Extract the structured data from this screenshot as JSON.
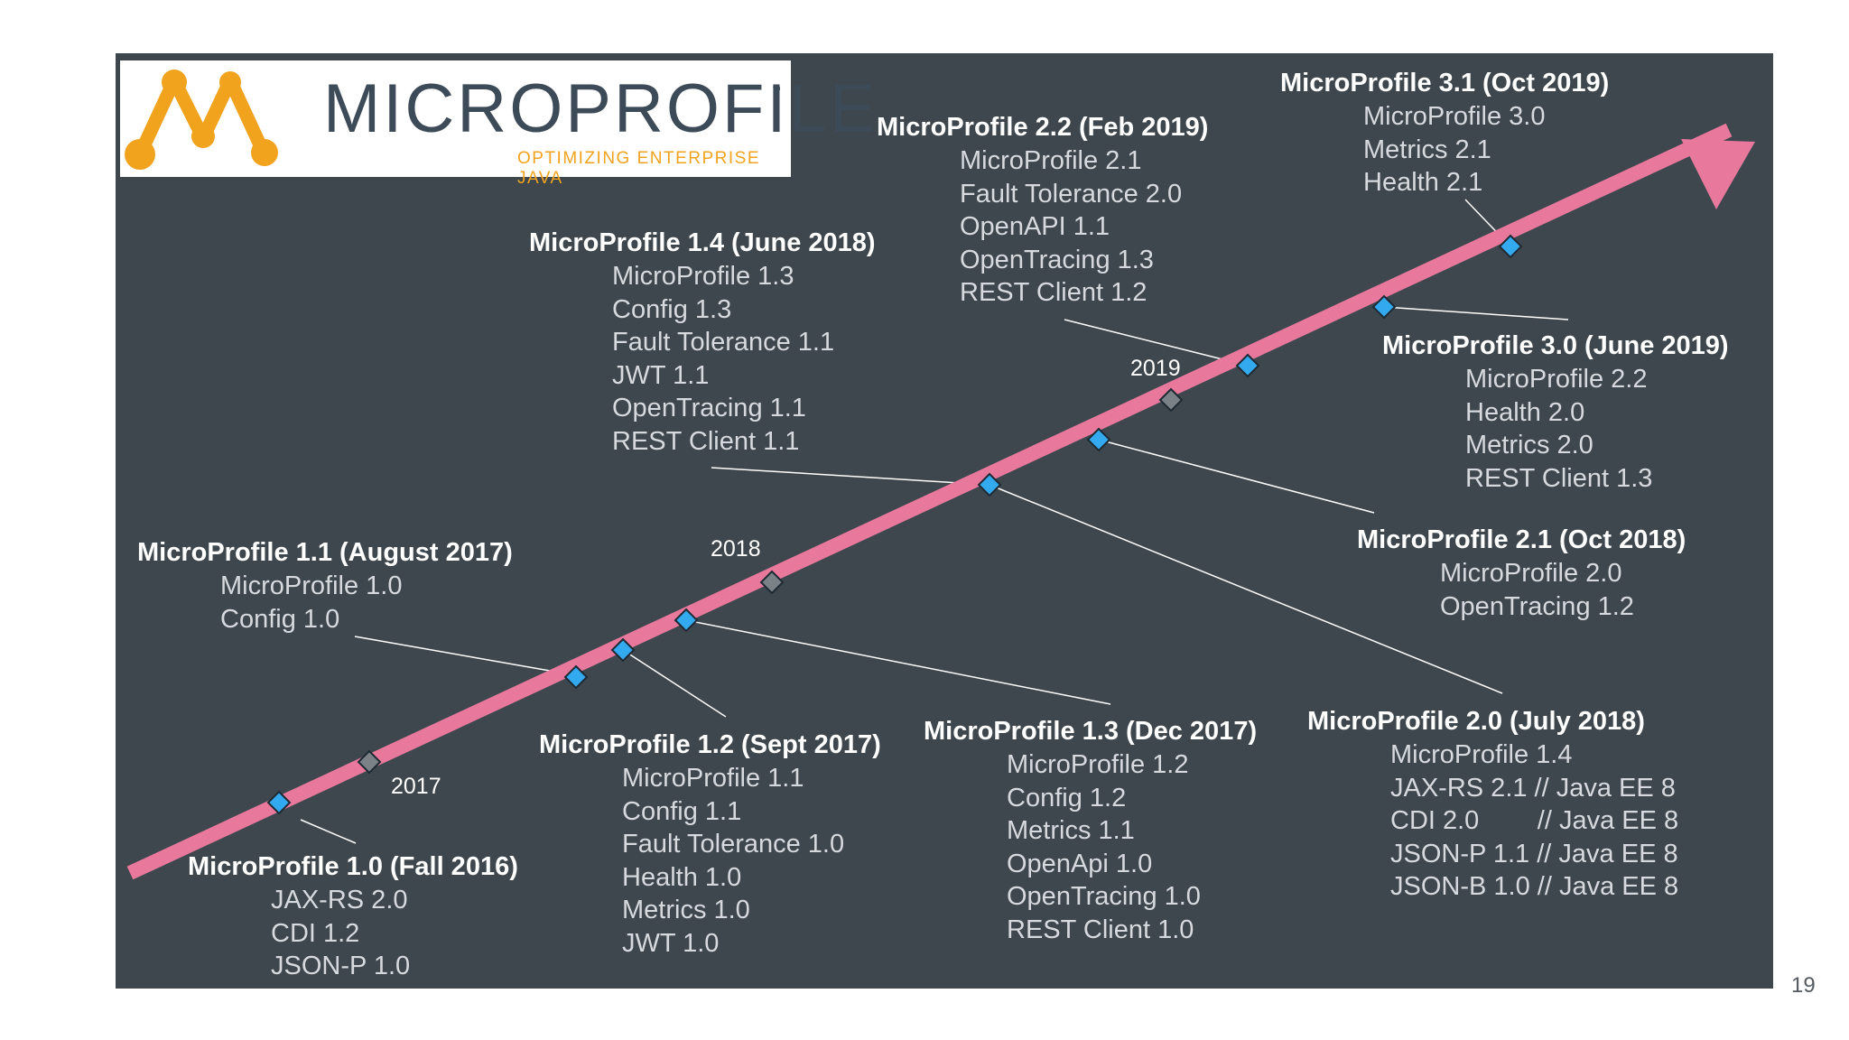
{
  "logo": {
    "wordmark": "MICROPROFILE",
    "trademark": "™",
    "tagline": "OPTIMIZING ENTERPRISE JAVA",
    "brand_color": "#f2a31d"
  },
  "colors": {
    "background": "#3e474d",
    "timeline": "#e8799c",
    "release_marker": "#33aaf0",
    "year_marker": "#7a8288"
  },
  "years": [
    "2017",
    "2018",
    "2019"
  ],
  "releases": [
    {
      "title": "MicroProfile 1.0 (Fall 2016)",
      "items": [
        "JAX-RS 2.0",
        "CDI 1.2",
        "JSON-P 1.0"
      ]
    },
    {
      "title": "MicroProfile 1.1 (August 2017)",
      "items": [
        "MicroProfile 1.0",
        "Config 1.0"
      ]
    },
    {
      "title": "MicroProfile 1.2 (Sept 2017)",
      "items": [
        "MicroProfile 1.1",
        "Config 1.1",
        "Fault Tolerance 1.0",
        "Health 1.0",
        "Metrics 1.0",
        "JWT 1.0"
      ]
    },
    {
      "title": "MicroProfile 1.3 (Dec 2017)",
      "items": [
        "MicroProfile 1.2",
        "Config 1.2",
        "Metrics 1.1",
        "OpenApi 1.0",
        "OpenTracing 1.0",
        "REST Client 1.0"
      ]
    },
    {
      "title": "MicroProfile 1.4 (June 2018)",
      "items": [
        "MicroProfile 1.3",
        "Config 1.3",
        "Fault Tolerance 1.1",
        "JWT 1.1",
        "OpenTracing 1.1",
        "REST Client 1.1"
      ]
    },
    {
      "title": "MicroProfile 2.0 (July 2018)",
      "items": [
        "MicroProfile 1.4",
        "JAX-RS 2.1 // Java EE 8",
        "CDI 2.0        // Java EE 8",
        "JSON-P 1.1 // Java EE 8",
        "JSON-B 1.0 // Java EE 8"
      ]
    },
    {
      "title": "MicroProfile 2.1 (Oct 2018)",
      "items": [
        "MicroProfile 2.0",
        "OpenTracing 1.2"
      ]
    },
    {
      "title": "MicroProfile 2.2 (Feb 2019)",
      "items": [
        "MicroProfile 2.1",
        "Fault Tolerance 2.0",
        "OpenAPI 1.1",
        "OpenTracing 1.3",
        "REST Client 1.2"
      ]
    },
    {
      "title": "MicroProfile 3.0 (June 2019)",
      "items": [
        "MicroProfile 2.2",
        "Health 2.0",
        "Metrics 2.0",
        "REST Client 1.3"
      ]
    },
    {
      "title": "MicroProfile 3.1 (Oct 2019)",
      "items": [
        "MicroProfile 3.0",
        "Metrics 2.1",
        "Health 2.1"
      ]
    }
  ],
  "page_number": "19"
}
